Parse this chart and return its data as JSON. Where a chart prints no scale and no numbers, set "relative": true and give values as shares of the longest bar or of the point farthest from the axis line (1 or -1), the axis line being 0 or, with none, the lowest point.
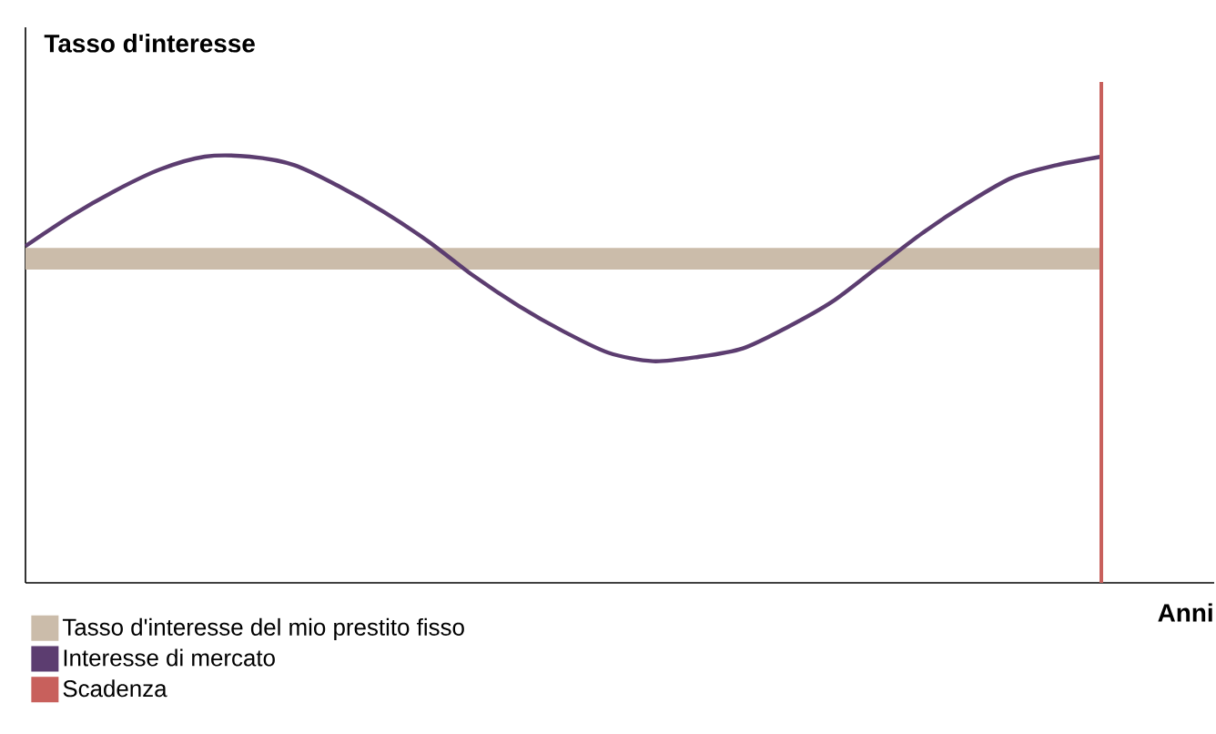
{
  "chart_data": {
    "type": "line",
    "relative": true,
    "categories": [
      null,
      null,
      null,
      null,
      null,
      null,
      null,
      null,
      null,
      null,
      null,
      null,
      null,
      null,
      null,
      null,
      null,
      null,
      null,
      null,
      null,
      null,
      null,
      null,
      null
    ],
    "ylabel": "Tasso d'interesse",
    "xlabel": "Anni",
    "series": [
      {
        "name": "Interesse di mercato",
        "color": "#5c3d70",
        "values": [
          0.79,
          0.86,
          0.92,
          0.97,
          1.0,
          1.0,
          0.98,
          0.93,
          0.87,
          0.8,
          0.72,
          0.65,
          0.59,
          0.54,
          0.52,
          0.53,
          0.55,
          0.6,
          0.66,
          0.74,
          0.82,
          0.89,
          0.95,
          0.98,
          1.0
        ]
      }
    ],
    "bands": [
      {
        "axis": "y",
        "from": 0.735,
        "to": 0.786,
        "label": "Tasso d'interesse del mio prestito fisso",
        "color": "#cbbcaa"
      }
    ],
    "ref_lines": [
      {
        "axis": "x",
        "label": "Scadenza",
        "color": "#c8605c"
      }
    ],
    "legend": "bottom left",
    "marker": "none",
    "line_style": "solid"
  }
}
